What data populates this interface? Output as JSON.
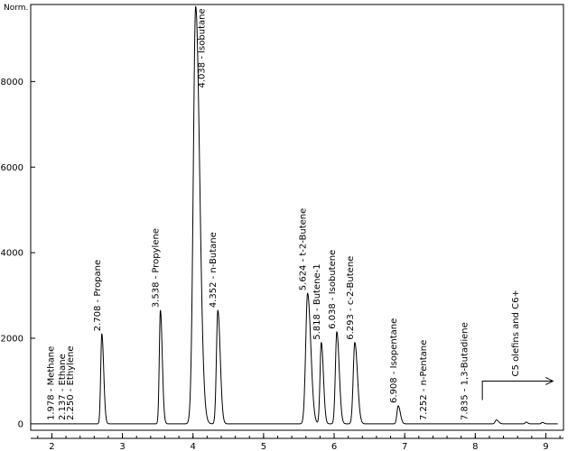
{
  "chart_data": {
    "type": "line",
    "y_unit_label": "Norm.",
    "x_range": [
      1.7,
      9.25
    ],
    "y_range": [
      -150,
      9800
    ],
    "x_ticks": [
      2,
      3,
      4,
      5,
      6,
      7,
      8,
      9
    ],
    "y_ticks": [
      0,
      2000,
      4000,
      6000,
      8000
    ],
    "baseline": 0,
    "peaks": [
      {
        "rt": 1.978,
        "height": 0,
        "width": 0.02,
        "label": "1.978 - Methane"
      },
      {
        "rt": 2.137,
        "height": 0,
        "width": 0.02,
        "label": "2.137 - Ethane"
      },
      {
        "rt": 2.25,
        "height": 0,
        "width": 0.02,
        "label": "2.250 - Ethylene"
      },
      {
        "rt": 2.708,
        "height": 2100,
        "width": 0.035,
        "label": "2.708 - Propane"
      },
      {
        "rt": 3.538,
        "height": 2650,
        "width": 0.035,
        "label": "3.538 - Propylene"
      },
      {
        "rt": 4.038,
        "height": 9750,
        "width": 0.075,
        "label": "4.038 - Isobutane"
      },
      {
        "rt": 4.352,
        "height": 2650,
        "width": 0.045,
        "label": "4.352 - n-Butane"
      },
      {
        "rt": 5.624,
        "height": 3050,
        "width": 0.06,
        "label": "5.624 - t-2-Butene"
      },
      {
        "rt": 5.818,
        "height": 1900,
        "width": 0.04,
        "label": "5.818 - Butene-1"
      },
      {
        "rt": 6.038,
        "height": 2150,
        "width": 0.045,
        "label": "6.038 - Isobutene"
      },
      {
        "rt": 6.293,
        "height": 1900,
        "width": 0.05,
        "label": "6.293 - c-2-Butene"
      },
      {
        "rt": 6.908,
        "height": 420,
        "width": 0.04,
        "label": "6.908 - Isopentane"
      },
      {
        "rt": 7.252,
        "height": 0,
        "width": 0.02,
        "label": "7.252 - n-Pentane"
      },
      {
        "rt": 7.835,
        "height": 0,
        "width": 0.02,
        "label": "7.835 - 1,3-Butadiene"
      },
      {
        "rt": 8.3,
        "height": 90,
        "width": 0.04,
        "label": ""
      },
      {
        "rt": 8.72,
        "height": 40,
        "width": 0.03,
        "label": ""
      },
      {
        "rt": 8.95,
        "height": 35,
        "width": 0.03,
        "label": ""
      }
    ],
    "annotation": {
      "text": "C5 olefins and C6+",
      "arrow_from_x": 8.1,
      "arrow_to_x": 9.1,
      "arrow_level": 1000
    }
  }
}
